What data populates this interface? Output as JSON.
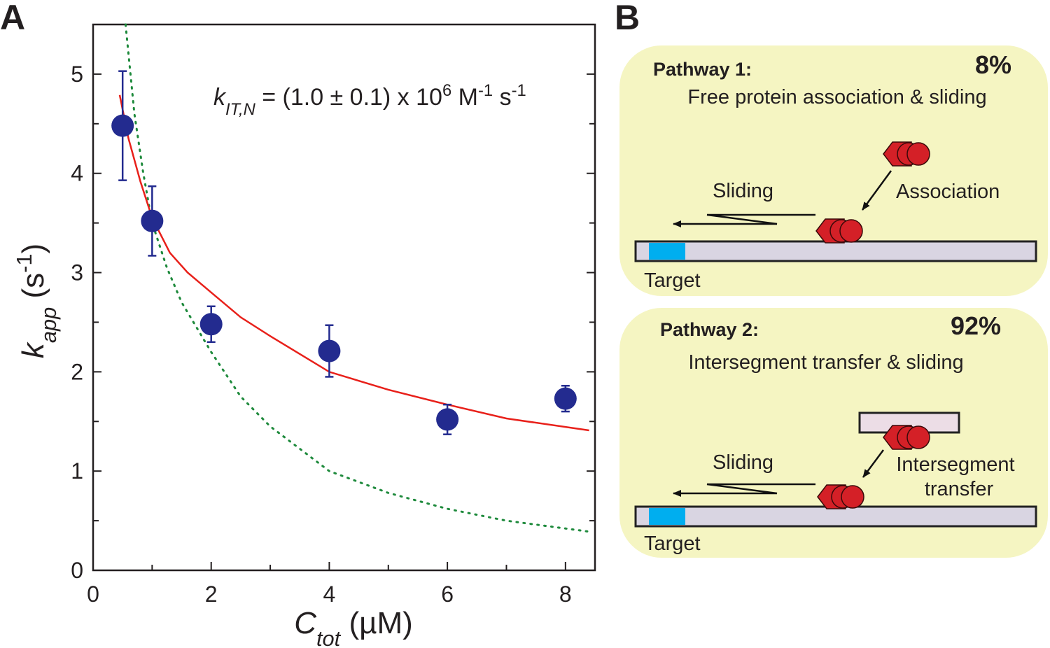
{
  "panel_labels": [
    "A",
    "B"
  ],
  "chart_data": {
    "type": "scatter",
    "xlabel": [
      {
        "text": "C",
        "style": "italic"
      },
      {
        "text": "tot",
        "style": "italic-sub"
      },
      {
        "text": " (µM)",
        "style": "normal"
      }
    ],
    "ylabel": [
      {
        "text": "k",
        "style": "italic"
      },
      {
        "text": "app",
        "style": "italic-sub"
      },
      {
        "text": " (s",
        "style": "normal"
      },
      {
        "text": "-1",
        "style": "sup"
      },
      {
        "text": ")",
        "style": "normal"
      }
    ],
    "annotation": [
      {
        "text": "k",
        "style": "italic"
      },
      {
        "text": "IT,N",
        "style": "italic-sub"
      },
      {
        "text": " = (1.0 ± 0.1) x 10",
        "style": "normal"
      },
      {
        "text": "6",
        "style": "sup"
      },
      {
        "text": " M",
        "style": "normal"
      },
      {
        "text": "-1",
        "style": "sup"
      },
      {
        "text": " s",
        "style": "normal"
      },
      {
        "text": "-1",
        "style": "sup"
      }
    ],
    "xlim": [
      0,
      8.5
    ],
    "ylim": [
      0,
      5.5
    ],
    "xticks": [
      0,
      2,
      4,
      6,
      8
    ],
    "yticks": [
      0,
      1,
      2,
      3,
      4,
      5
    ],
    "x_minor_ticks": [
      1,
      3,
      5,
      7
    ],
    "y_minor_ticks": [
      0.5,
      1.5,
      2.5,
      3.5,
      4.5
    ],
    "points": {
      "x": [
        0.5,
        1,
        2,
        4,
        6,
        8
      ],
      "values": [
        4.48,
        3.52,
        2.48,
        2.21,
        1.52,
        1.73
      ],
      "errors": [
        0.55,
        0.35,
        0.18,
        0.26,
        0.15,
        0.13
      ],
      "color": "#232b8f"
    },
    "fit": {
      "x": [
        0.45,
        0.6,
        0.8,
        1,
        1.3,
        1.6,
        2,
        2.5,
        3,
        4,
        5,
        6,
        7,
        8.4
      ],
      "values": [
        4.79,
        4.35,
        3.92,
        3.55,
        3.2,
        3.0,
        2.8,
        2.55,
        2.36,
        2.0,
        1.82,
        1.67,
        1.53,
        1.41
      ],
      "color": "#e8201a"
    },
    "model": {
      "x": [
        0.55,
        0.7,
        0.85,
        1,
        1.25,
        1.5,
        2,
        2.5,
        3,
        4,
        5,
        6,
        7,
        8.4
      ],
      "values": [
        5.5,
        4.6,
        4.0,
        3.5,
        3.05,
        2.7,
        2.2,
        1.75,
        1.45,
        1.0,
        0.78,
        0.62,
        0.5,
        0.39
      ],
      "color": "#1e8a3c"
    }
  },
  "diagram": {
    "pathways": [
      {
        "title": "Pathway 1:",
        "percent": "8%",
        "subtitle": "Free protein association & sliding",
        "sliding": "Sliding",
        "step": [
          "Association"
        ],
        "target": "Target"
      },
      {
        "title": "Pathway 2:",
        "percent": "92%",
        "subtitle": "Intersegment transfer & sliding",
        "sliding": "Sliding",
        "step": [
          "Intersegment",
          "transfer"
        ],
        "target": "Target"
      }
    ]
  }
}
